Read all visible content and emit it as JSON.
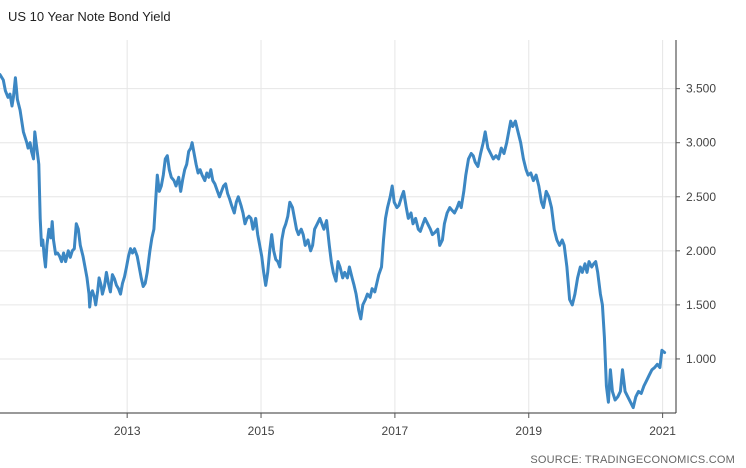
{
  "chart_data": {
    "type": "line",
    "title": "US 10 Year Note Bond Yield",
    "xlabel": "",
    "ylabel": "",
    "x_ticks": [
      "2013",
      "2015",
      "2017",
      "2019",
      "2021"
    ],
    "y_ticks": [
      "1.000",
      "1.500",
      "2.000",
      "2.500",
      "3.000",
      "3.500"
    ],
    "xlim": [
      2011.1,
      2021.2
    ],
    "ylim": [
      0.5,
      3.95
    ],
    "grid": true,
    "line_color": "#3c87c3",
    "series": [
      {
        "values": [
          [
            2011.1,
            3.63
          ],
          [
            2011.15,
            3.58
          ],
          [
            2011.18,
            3.48
          ],
          [
            2011.22,
            3.42
          ],
          [
            2011.25,
            3.45
          ],
          [
            2011.28,
            3.34
          ],
          [
            2011.3,
            3.42
          ],
          [
            2011.33,
            3.6
          ],
          [
            2011.36,
            3.4
          ],
          [
            2011.4,
            3.3
          ],
          [
            2011.45,
            3.1
          ],
          [
            2011.5,
            3.0
          ],
          [
            2011.52,
            2.95
          ],
          [
            2011.55,
            3.0
          ],
          [
            2011.57,
            2.92
          ],
          [
            2011.6,
            2.85
          ],
          [
            2011.62,
            3.1
          ],
          [
            2011.65,
            2.95
          ],
          [
            2011.68,
            2.8
          ],
          [
            2011.7,
            2.3
          ],
          [
            2011.72,
            2.05
          ],
          [
            2011.74,
            2.1
          ],
          [
            2011.76,
            1.95
          ],
          [
            2011.78,
            1.85
          ],
          [
            2011.8,
            2.05
          ],
          [
            2011.83,
            2.2
          ],
          [
            2011.86,
            2.12
          ],
          [
            2011.88,
            2.27
          ],
          [
            2011.9,
            2.1
          ],
          [
            2011.93,
            1.97
          ],
          [
            2011.96,
            1.98
          ],
          [
            2011.99,
            1.95
          ],
          [
            2012.02,
            1.9
          ],
          [
            2012.05,
            1.98
          ],
          [
            2012.08,
            1.9
          ],
          [
            2012.12,
            2.0
          ],
          [
            2012.15,
            1.94
          ],
          [
            2012.18,
            2.0
          ],
          [
            2012.21,
            2.02
          ],
          [
            2012.24,
            2.25
          ],
          [
            2012.27,
            2.2
          ],
          [
            2012.3,
            2.05
          ],
          [
            2012.34,
            1.95
          ],
          [
            2012.37,
            1.85
          ],
          [
            2012.4,
            1.75
          ],
          [
            2012.43,
            1.6
          ],
          [
            2012.44,
            1.48
          ],
          [
            2012.46,
            1.6
          ],
          [
            2012.48,
            1.63
          ],
          [
            2012.51,
            1.57
          ],
          [
            2012.53,
            1.5
          ],
          [
            2012.56,
            1.63
          ],
          [
            2012.58,
            1.75
          ],
          [
            2012.61,
            1.68
          ],
          [
            2012.63,
            1.6
          ],
          [
            2012.66,
            1.67
          ],
          [
            2012.69,
            1.8
          ],
          [
            2012.72,
            1.7
          ],
          [
            2012.75,
            1.62
          ],
          [
            2012.78,
            1.78
          ],
          [
            2012.81,
            1.74
          ],
          [
            2012.84,
            1.68
          ],
          [
            2012.87,
            1.65
          ],
          [
            2012.9,
            1.6
          ],
          [
            2012.93,
            1.7
          ],
          [
            2012.96,
            1.76
          ],
          [
            2012.99,
            1.85
          ],
          [
            2013.02,
            1.95
          ],
          [
            2013.05,
            2.02
          ],
          [
            2013.08,
            1.98
          ],
          [
            2013.11,
            2.02
          ],
          [
            2013.15,
            1.95
          ],
          [
            2013.18,
            1.85
          ],
          [
            2013.21,
            1.75
          ],
          [
            2013.24,
            1.67
          ],
          [
            2013.27,
            1.7
          ],
          [
            2013.3,
            1.8
          ],
          [
            2013.34,
            2.0
          ],
          [
            2013.37,
            2.12
          ],
          [
            2013.4,
            2.2
          ],
          [
            2013.43,
            2.5
          ],
          [
            2013.45,
            2.7
          ],
          [
            2013.48,
            2.55
          ],
          [
            2013.51,
            2.6
          ],
          [
            2013.54,
            2.7
          ],
          [
            2013.57,
            2.85
          ],
          [
            2013.6,
            2.88
          ],
          [
            2013.63,
            2.75
          ],
          [
            2013.66,
            2.68
          ],
          [
            2013.7,
            2.65
          ],
          [
            2013.73,
            2.6
          ],
          [
            2013.77,
            2.68
          ],
          [
            2013.8,
            2.55
          ],
          [
            2013.83,
            2.66
          ],
          [
            2013.86,
            2.75
          ],
          [
            2013.89,
            2.8
          ],
          [
            2013.92,
            2.92
          ],
          [
            2013.95,
            2.95
          ],
          [
            2013.97,
            3.0
          ],
          [
            2014.0,
            2.9
          ],
          [
            2014.03,
            2.8
          ],
          [
            2014.06,
            2.72
          ],
          [
            2014.09,
            2.75
          ],
          [
            2014.12,
            2.7
          ],
          [
            2014.16,
            2.65
          ],
          [
            2014.19,
            2.72
          ],
          [
            2014.22,
            2.68
          ],
          [
            2014.25,
            2.75
          ],
          [
            2014.28,
            2.65
          ],
          [
            2014.31,
            2.62
          ],
          [
            2014.35,
            2.55
          ],
          [
            2014.38,
            2.5
          ],
          [
            2014.41,
            2.55
          ],
          [
            2014.44,
            2.6
          ],
          [
            2014.47,
            2.62
          ],
          [
            2014.5,
            2.53
          ],
          [
            2014.53,
            2.48
          ],
          [
            2014.56,
            2.42
          ],
          [
            2014.6,
            2.35
          ],
          [
            2014.63,
            2.45
          ],
          [
            2014.66,
            2.5
          ],
          [
            2014.7,
            2.42
          ],
          [
            2014.73,
            2.35
          ],
          [
            2014.76,
            2.25
          ],
          [
            2014.79,
            2.3
          ],
          [
            2014.82,
            2.32
          ],
          [
            2014.85,
            2.3
          ],
          [
            2014.88,
            2.2
          ],
          [
            2014.92,
            2.3
          ],
          [
            2014.95,
            2.15
          ],
          [
            2014.98,
            2.05
          ],
          [
            2015.01,
            1.95
          ],
          [
            2015.04,
            1.8
          ],
          [
            2015.07,
            1.68
          ],
          [
            2015.1,
            1.8
          ],
          [
            2015.13,
            2.0
          ],
          [
            2015.16,
            2.15
          ],
          [
            2015.19,
            2.0
          ],
          [
            2015.22,
            1.92
          ],
          [
            2015.25,
            1.9
          ],
          [
            2015.28,
            1.85
          ],
          [
            2015.31,
            2.1
          ],
          [
            2015.34,
            2.2
          ],
          [
            2015.37,
            2.25
          ],
          [
            2015.4,
            2.32
          ],
          [
            2015.43,
            2.45
          ],
          [
            2015.47,
            2.4
          ],
          [
            2015.5,
            2.3
          ],
          [
            2015.53,
            2.2
          ],
          [
            2015.56,
            2.15
          ],
          [
            2015.6,
            2.2
          ],
          [
            2015.63,
            2.15
          ],
          [
            2015.66,
            2.05
          ],
          [
            2015.7,
            2.1
          ],
          [
            2015.74,
            2.0
          ],
          [
            2015.77,
            2.05
          ],
          [
            2015.8,
            2.2
          ],
          [
            2015.84,
            2.25
          ],
          [
            2015.88,
            2.3
          ],
          [
            2015.91,
            2.25
          ],
          [
            2015.94,
            2.2
          ],
          [
            2015.98,
            2.28
          ],
          [
            2016.02,
            2.05
          ],
          [
            2016.05,
            1.9
          ],
          [
            2016.08,
            1.8
          ],
          [
            2016.12,
            1.72
          ],
          [
            2016.15,
            1.9
          ],
          [
            2016.18,
            1.85
          ],
          [
            2016.22,
            1.75
          ],
          [
            2016.25,
            1.8
          ],
          [
            2016.29,
            1.75
          ],
          [
            2016.32,
            1.85
          ],
          [
            2016.36,
            1.75
          ],
          [
            2016.39,
            1.68
          ],
          [
            2016.42,
            1.6
          ],
          [
            2016.46,
            1.45
          ],
          [
            2016.49,
            1.37
          ],
          [
            2016.52,
            1.5
          ],
          [
            2016.56,
            1.55
          ],
          [
            2016.59,
            1.6
          ],
          [
            2016.63,
            1.57
          ],
          [
            2016.66,
            1.65
          ],
          [
            2016.7,
            1.62
          ],
          [
            2016.73,
            1.7
          ],
          [
            2016.76,
            1.78
          ],
          [
            2016.8,
            1.85
          ],
          [
            2016.83,
            2.1
          ],
          [
            2016.86,
            2.3
          ],
          [
            2016.89,
            2.4
          ],
          [
            2016.93,
            2.5
          ],
          [
            2016.96,
            2.6
          ],
          [
            2016.99,
            2.45
          ],
          [
            2017.03,
            2.4
          ],
          [
            2017.06,
            2.42
          ],
          [
            2017.1,
            2.5
          ],
          [
            2017.13,
            2.55
          ],
          [
            2017.17,
            2.4
          ],
          [
            2017.2,
            2.3
          ],
          [
            2017.24,
            2.35
          ],
          [
            2017.27,
            2.25
          ],
          [
            2017.31,
            2.3
          ],
          [
            2017.35,
            2.2
          ],
          [
            2017.38,
            2.18
          ],
          [
            2017.42,
            2.25
          ],
          [
            2017.45,
            2.3
          ],
          [
            2017.49,
            2.25
          ],
          [
            2017.53,
            2.2
          ],
          [
            2017.56,
            2.15
          ],
          [
            2017.6,
            2.17
          ],
          [
            2017.64,
            2.2
          ],
          [
            2017.67,
            2.05
          ],
          [
            2017.71,
            2.1
          ],
          [
            2017.74,
            2.25
          ],
          [
            2017.78,
            2.35
          ],
          [
            2017.82,
            2.4
          ],
          [
            2017.86,
            2.37
          ],
          [
            2017.89,
            2.35
          ],
          [
            2017.93,
            2.4
          ],
          [
            2017.96,
            2.45
          ],
          [
            2017.99,
            2.4
          ],
          [
            2018.03,
            2.55
          ],
          [
            2018.06,
            2.7
          ],
          [
            2018.1,
            2.85
          ],
          [
            2018.14,
            2.9
          ],
          [
            2018.17,
            2.88
          ],
          [
            2018.2,
            2.82
          ],
          [
            2018.24,
            2.78
          ],
          [
            2018.28,
            2.9
          ],
          [
            2018.32,
            3.0
          ],
          [
            2018.35,
            3.1
          ],
          [
            2018.39,
            2.95
          ],
          [
            2018.43,
            2.9
          ],
          [
            2018.47,
            2.85
          ],
          [
            2018.51,
            2.88
          ],
          [
            2018.55,
            2.85
          ],
          [
            2018.59,
            2.95
          ],
          [
            2018.63,
            2.9
          ],
          [
            2018.67,
            3.0
          ],
          [
            2018.7,
            3.1
          ],
          [
            2018.73,
            3.2
          ],
          [
            2018.76,
            3.15
          ],
          [
            2018.8,
            3.2
          ],
          [
            2018.84,
            3.1
          ],
          [
            2018.88,
            3.0
          ],
          [
            2018.92,
            2.85
          ],
          [
            2018.96,
            2.75
          ],
          [
            2018.99,
            2.7
          ],
          [
            2019.03,
            2.72
          ],
          [
            2019.07,
            2.65
          ],
          [
            2019.11,
            2.7
          ],
          [
            2019.15,
            2.6
          ],
          [
            2019.19,
            2.45
          ],
          [
            2019.22,
            2.4
          ],
          [
            2019.26,
            2.55
          ],
          [
            2019.3,
            2.5
          ],
          [
            2019.34,
            2.4
          ],
          [
            2019.38,
            2.2
          ],
          [
            2019.42,
            2.1
          ],
          [
            2019.46,
            2.05
          ],
          [
            2019.5,
            2.1
          ],
          [
            2019.53,
            2.05
          ],
          [
            2019.57,
            1.85
          ],
          [
            2019.61,
            1.55
          ],
          [
            2019.65,
            1.5
          ],
          [
            2019.69,
            1.6
          ],
          [
            2019.73,
            1.75
          ],
          [
            2019.77,
            1.85
          ],
          [
            2019.8,
            1.8
          ],
          [
            2019.84,
            1.88
          ],
          [
            2019.87,
            1.8
          ],
          [
            2019.9,
            1.9
          ],
          [
            2019.94,
            1.85
          ],
          [
            2019.97,
            1.88
          ],
          [
            2020.0,
            1.9
          ],
          [
            2020.03,
            1.8
          ],
          [
            2020.07,
            1.6
          ],
          [
            2020.1,
            1.5
          ],
          [
            2020.13,
            1.2
          ],
          [
            2020.16,
            0.75
          ],
          [
            2020.19,
            0.6
          ],
          [
            2020.22,
            0.9
          ],
          [
            2020.25,
            0.7
          ],
          [
            2020.29,
            0.62
          ],
          [
            2020.33,
            0.65
          ],
          [
            2020.37,
            0.7
          ],
          [
            2020.4,
            0.9
          ],
          [
            2020.44,
            0.7
          ],
          [
            2020.48,
            0.65
          ],
          [
            2020.52,
            0.6
          ],
          [
            2020.56,
            0.55
          ],
          [
            2020.6,
            0.65
          ],
          [
            2020.64,
            0.7
          ],
          [
            2020.68,
            0.68
          ],
          [
            2020.72,
            0.75
          ],
          [
            2020.76,
            0.8
          ],
          [
            2020.8,
            0.85
          ],
          [
            2020.84,
            0.9
          ],
          [
            2020.88,
            0.92
          ],
          [
            2020.92,
            0.95
          ],
          [
            2020.96,
            0.92
          ],
          [
            2020.99,
            1.08
          ],
          [
            2021.03,
            1.06
          ]
        ]
      }
    ],
    "source": "SOURCE: TRADINGECONOMICS.COM"
  }
}
